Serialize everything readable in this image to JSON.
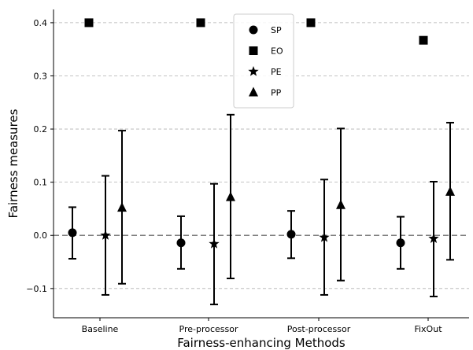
{
  "chart_data": {
    "type": "scatter",
    "xlabel": "Fairness-enhancing Methods",
    "ylabel": "Fairness measures",
    "categories": [
      "Baseline",
      "Pre-processor",
      "Post-processor",
      "FixOut"
    ],
    "yticks": [
      "−0.1",
      "0.0",
      "0.1",
      "0.2",
      "0.3",
      "0.4"
    ],
    "ylim": [
      -0.155,
      0.425
    ],
    "grid": "horizontal dashed",
    "reference_line": 0.0,
    "legend": {
      "placement": "top-center",
      "entries": [
        "SP",
        "EO",
        "PE",
        "PP"
      ]
    },
    "series": [
      {
        "name": "SP",
        "marker": "circle",
        "values": [
          0.005,
          -0.014,
          0.002,
          -0.014
        ],
        "lower": [
          -0.044,
          -0.063,
          -0.043,
          -0.063
        ],
        "upper": [
          0.053,
          0.036,
          0.046,
          0.035
        ]
      },
      {
        "name": "EO",
        "marker": "square",
        "values": [
          0.4,
          0.4,
          0.4,
          0.367
        ]
      },
      {
        "name": "PE",
        "marker": "star",
        "values": [
          0.0,
          -0.016,
          -0.004,
          -0.006
        ],
        "lower": [
          -0.112,
          -0.13,
          -0.112,
          -0.115
        ],
        "upper": [
          0.112,
          0.097,
          0.105,
          0.101
        ]
      },
      {
        "name": "PP",
        "marker": "triangle",
        "values": [
          0.052,
          0.072,
          0.057,
          0.082
        ],
        "lower": [
          -0.091,
          -0.081,
          -0.085,
          -0.046
        ],
        "upper": [
          0.197,
          0.227,
          0.201,
          0.212
        ]
      }
    ],
    "colors": {
      "markers": "#000000",
      "grid": "#b0b0b0",
      "reference": "#7f7f7f",
      "axes": "#000000"
    }
  }
}
